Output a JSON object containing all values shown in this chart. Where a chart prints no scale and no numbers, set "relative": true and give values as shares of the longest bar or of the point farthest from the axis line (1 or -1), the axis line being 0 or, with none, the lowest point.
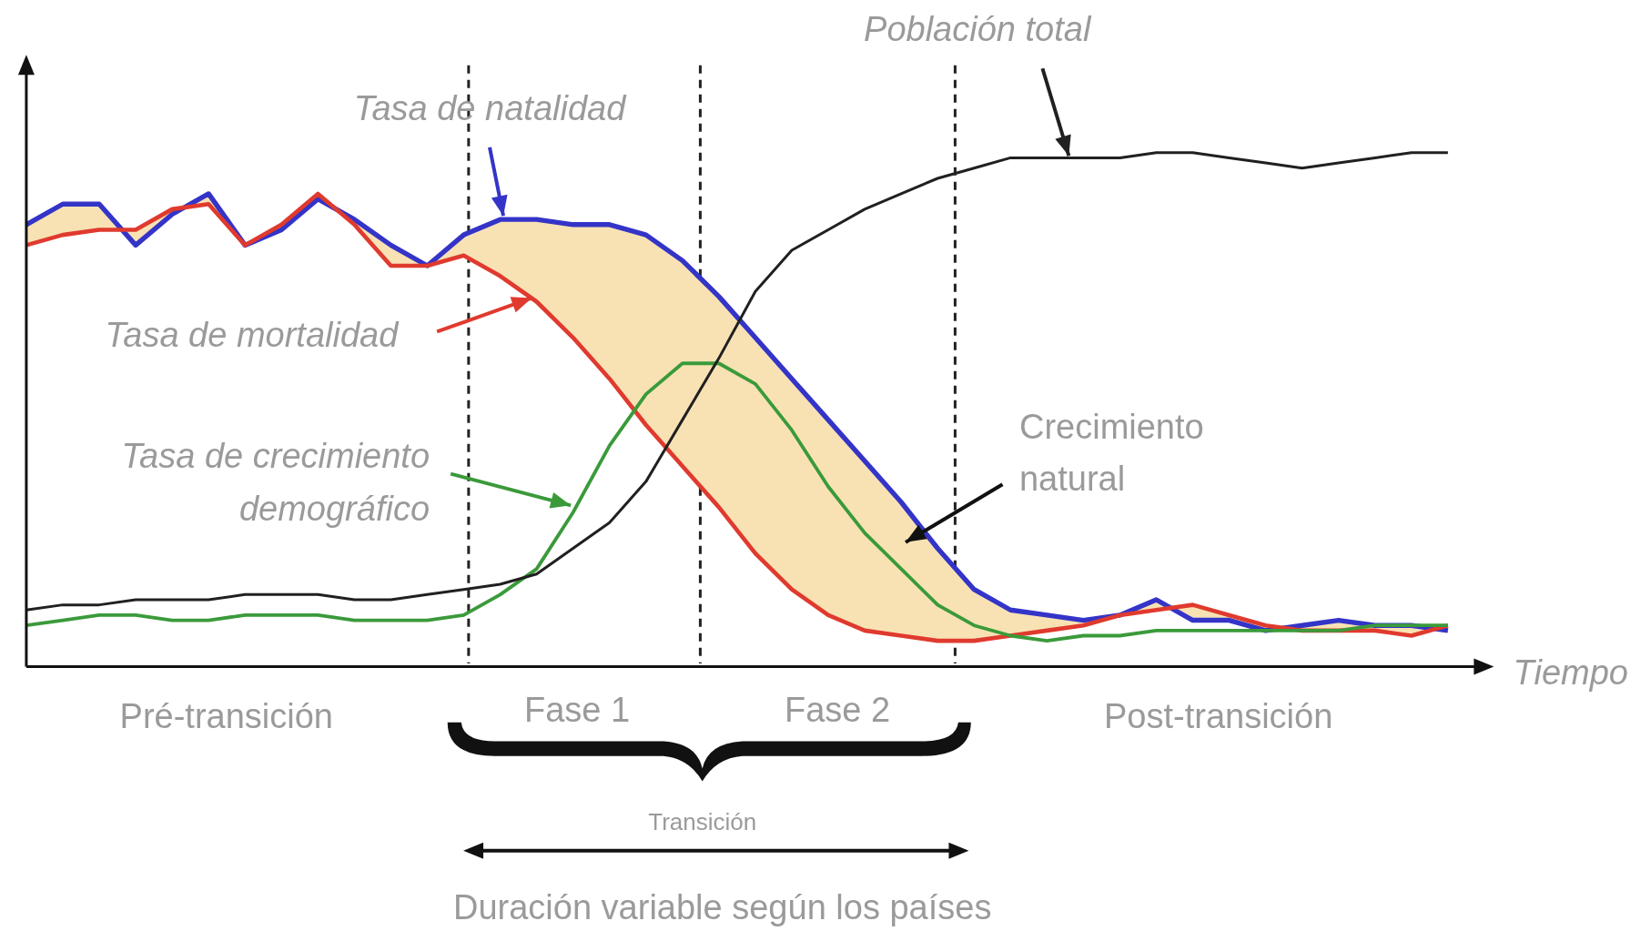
{
  "chart_data": {
    "type": "line",
    "relative": true,
    "xlabel": "Tiempo",
    "legend": "left",
    "categories": [
      null,
      null,
      null,
      null,
      null,
      null,
      null,
      null,
      null,
      null,
      null,
      null,
      null,
      null,
      null,
      null,
      null,
      null,
      null,
      null,
      null,
      null,
      null,
      null,
      null,
      null,
      null,
      null,
      null,
      null,
      null,
      null,
      null,
      null,
      null,
      null,
      null,
      null,
      null,
      null
    ],
    "series": [
      {
        "name": "Tasa de natalidad",
        "color": "#3434c8",
        "values": [
          0.86,
          0.9,
          0.9,
          0.82,
          0.88,
          0.92,
          0.82,
          0.85,
          0.91,
          0.87,
          0.82,
          0.78,
          0.84,
          0.87,
          0.87,
          0.86,
          0.86,
          0.84,
          0.79,
          0.72,
          0.64,
          0.56,
          0.48,
          0.4,
          0.32,
          0.23,
          0.15,
          0.11,
          0.1,
          0.09,
          0.1,
          0.13,
          0.09,
          0.09,
          0.07,
          0.08,
          0.09,
          0.08,
          0.08,
          0.07
        ],
        "upper": [
          0.86,
          0.9,
          0.9,
          0.82,
          0.88,
          0.92,
          0.82,
          0.85,
          0.91,
          0.87,
          0.82,
          0.78,
          0.84,
          0.87,
          0.87,
          0.86,
          0.86,
          0.84,
          0.79,
          0.72,
          0.64,
          0.56,
          0.48,
          0.4,
          0.32,
          0.23,
          0.15,
          0.11,
          0.1,
          0.09,
          0.1,
          0.13,
          0.09,
          0.09,
          0.07,
          0.08,
          0.09,
          0.08,
          0.08,
          0.07
        ],
        "lower": [
          0.82,
          0.84,
          0.85,
          0.85,
          0.89,
          0.9,
          0.82,
          0.86,
          0.92,
          0.86,
          0.78,
          0.78,
          0.8,
          0.76,
          0.71,
          0.64,
          0.56,
          0.47,
          0.39,
          0.31,
          0.22,
          0.15,
          0.1,
          0.07,
          0.06,
          0.05,
          0.05,
          0.06,
          0.07,
          0.08,
          0.1,
          0.11,
          0.12,
          0.1,
          0.08,
          0.07,
          0.07,
          0.07,
          0.06,
          0.08
        ]
      },
      {
        "name": "Tasa de mortalidad",
        "color": "#e03a2e",
        "values": [
          0.82,
          0.84,
          0.85,
          0.85,
          0.89,
          0.9,
          0.82,
          0.86,
          0.92,
          0.86,
          0.78,
          0.78,
          0.8,
          0.76,
          0.71,
          0.64,
          0.56,
          0.47,
          0.39,
          0.31,
          0.22,
          0.15,
          0.1,
          0.07,
          0.06,
          0.05,
          0.05,
          0.06,
          0.07,
          0.08,
          0.1,
          0.11,
          0.12,
          0.1,
          0.08,
          0.07,
          0.07,
          0.07,
          0.06,
          0.08
        ]
      },
      {
        "name": "Tasa de crecimiento demográfico",
        "color": "#3a9a3a",
        "values": [
          0.08,
          0.09,
          0.1,
          0.1,
          0.09,
          0.09,
          0.1,
          0.1,
          0.1,
          0.09,
          0.09,
          0.09,
          0.1,
          0.14,
          0.19,
          0.3,
          0.43,
          0.53,
          0.59,
          0.59,
          0.55,
          0.46,
          0.35,
          0.26,
          0.19,
          0.12,
          0.08,
          0.06,
          0.05,
          0.06,
          0.06,
          0.07,
          0.07,
          0.07,
          0.07,
          0.07,
          0.07,
          0.08,
          0.08,
          0.08
        ]
      },
      {
        "name": "Población total",
        "color": "#202020",
        "values": [
          0.11,
          0.12,
          0.12,
          0.13,
          0.13,
          0.13,
          0.14,
          0.14,
          0.14,
          0.13,
          0.13,
          0.14,
          0.15,
          0.16,
          0.18,
          0.23,
          0.28,
          0.36,
          0.48,
          0.6,
          0.73,
          0.81,
          0.85,
          0.89,
          0.92,
          0.95,
          0.97,
          0.99,
          0.99,
          0.99,
          0.99,
          1.0,
          1.0,
          0.99,
          0.98,
          0.97,
          0.98,
          0.99,
          1.0,
          1.0
        ]
      }
    ],
    "annotations": [
      "Crecimiento natural",
      "Pré-transición",
      "Fase 1",
      "Fase 2",
      "Post-transición",
      "Transición",
      "Duración variable según los países"
    ]
  }
}
